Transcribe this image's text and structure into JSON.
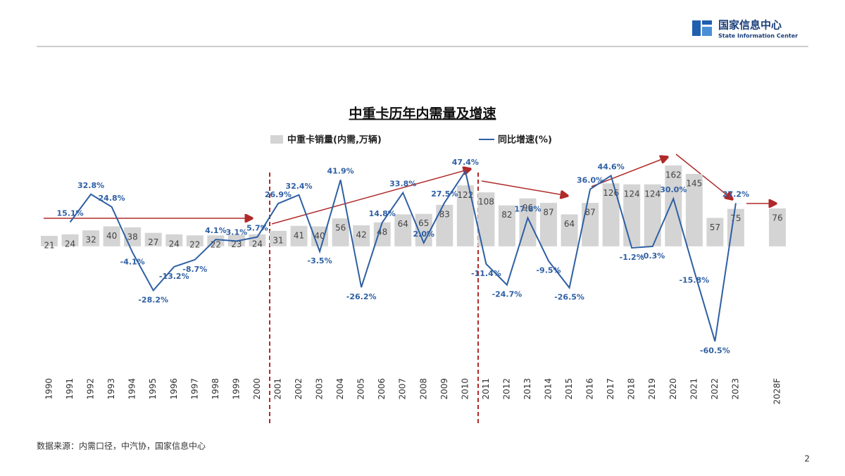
{
  "header": {
    "org": "国家信息中心",
    "org_en": "State Information Center"
  },
  "chart_data": {
    "type": "bar",
    "title": "中重卡历年内需量及增速",
    "categories": [
      "1990",
      "1991",
      "1992",
      "1993",
      "1994",
      "1995",
      "1996",
      "1997",
      "1998",
      "1999",
      "2000",
      "2001",
      "2002",
      "2003",
      "2004",
      "2005",
      "2006",
      "2007",
      "2008",
      "2009",
      "2010",
      "2011",
      "2012",
      "2013",
      "2014",
      "2015",
      "2016",
      "2017",
      "2018",
      "2019",
      "2020",
      "2021",
      "2022",
      "2023",
      null,
      "2028F"
    ],
    "series": [
      {
        "name": "中重卡销量(内需,万辆)",
        "type": "bar",
        "color": "#d4d4d4",
        "values": [
          21,
          24,
          32,
          40,
          38,
          27,
          24,
          22,
          22,
          23,
          24,
          31,
          41,
          40,
          56,
          42,
          48,
          64,
          65,
          83,
          122,
          108,
          82,
          96,
          87,
          64,
          87,
          126,
          124,
          124,
          162,
          145,
          57,
          75,
          null,
          76
        ]
      },
      {
        "name": "同比增速(%)",
        "type": "line",
        "axis": "y2",
        "color": "#2e5fa3",
        "values": [
          null,
          15.1,
          32.8,
          24.8,
          -4.1,
          -28.2,
          -13.2,
          -8.7,
          4.1,
          3.1,
          5.7,
          26.9,
          32.4,
          -3.5,
          41.9,
          -26.2,
          14.8,
          33.8,
          2.0,
          27.5,
          47.4,
          -11.4,
          -24.7,
          17.8,
          -9.5,
          -26.5,
          36.0,
          44.6,
          -1.2,
          -0.3,
          30.0,
          -15.8,
          -60.5,
          27.2,
          null,
          null
        ],
        "value_labels": [
          null,
          "15.1%",
          "32.8%",
          "24.8%",
          "-4.1%",
          "-28.2%",
          "-13.2%",
          "-8.7%",
          "4.1%",
          "3.1%",
          "5.7%",
          "26.9%",
          "32.4%",
          "-3.5%",
          "41.9%",
          "-26.2%",
          "14.8%",
          "33.8%",
          "2.0%",
          "27.5%",
          "47.4%",
          "-11.4%",
          "-24.7%",
          "17.8%",
          "-9.5%",
          "-26.5%",
          "36.0%",
          "44.6%",
          "-1.2%",
          "-0.3%",
          "30.0%",
          "-15.8%",
          "-60.5%",
          "27.2%",
          null,
          null
        ]
      }
    ],
    "ylim": [
      -220,
      190
    ],
    "y2lim": [
      -70,
      60
    ]
  },
  "footer": {
    "source": "数据来源：内需口径，中汽协，国家信息中心",
    "page": "2"
  }
}
